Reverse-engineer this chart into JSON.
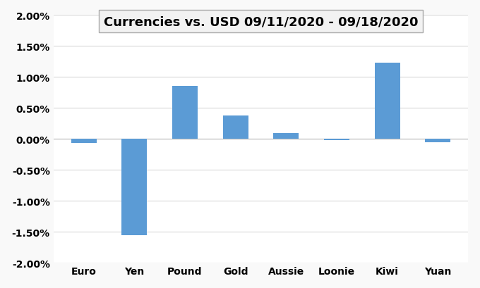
{
  "title": "Currencies vs. USD 09/11/2020 - 09/18/2020",
  "categories": [
    "Euro",
    "Yen",
    "Pound",
    "Gold",
    "Aussie",
    "Loonie",
    "Kiwi",
    "Yuan"
  ],
  "values": [
    -0.0007,
    -0.0155,
    0.0085,
    0.0038,
    0.0009,
    -0.0002,
    0.0123,
    -0.0005
  ],
  "bar_color": "#5b9bd5",
  "ylim": [
    -0.02,
    0.02
  ],
  "yticks": [
    -0.02,
    -0.015,
    -0.01,
    -0.005,
    0.0,
    0.005,
    0.01,
    0.015,
    0.02
  ],
  "background_color": "#f9f9f9",
  "plot_bg_color": "#ffffff",
  "grid_color": "#d9d9d9",
  "title_fontsize": 13,
  "tick_fontsize": 10,
  "title_box_facecolor": "#f2f2f2",
  "title_box_edgecolor": "#aaaaaa"
}
